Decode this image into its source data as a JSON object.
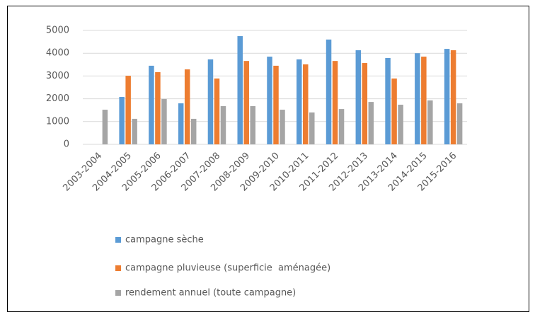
{
  "chart_data": {
    "type": "bar",
    "categories": [
      "2003-2004",
      "2004-2005",
      "2005-2006",
      "2006-2007",
      "2007-2008",
      "2008-2009",
      "2009-2010",
      "2010-2011",
      "2011-2012",
      "2012-2013",
      "2013-2014",
      "2014-2015",
      "2015-2016"
    ],
    "series": [
      {
        "name": "campagne sèche",
        "color": "#5b9bd5",
        "values": [
          null,
          2080,
          3450,
          1800,
          3730,
          4750,
          3850,
          3730,
          4600,
          4130,
          3790,
          4000,
          4190
        ]
      },
      {
        "name": "campagne pluvieuse (superficie  aménagée)",
        "color": "#ed7d31",
        "values": [
          null,
          3010,
          3170,
          3290,
          2890,
          3660,
          3450,
          3510,
          3660,
          3570,
          2890,
          3850,
          4130
        ]
      },
      {
        "name": "rendement annuel (toute campagne)",
        "color": "#a5a5a5",
        "values": [
          1520,
          1120,
          1990,
          1120,
          1680,
          1680,
          1520,
          1400,
          1550,
          1860,
          1740,
          1930,
          1800
        ]
      }
    ],
    "ylim": [
      0,
      5000
    ],
    "yticks": [
      0,
      1000,
      2000,
      3000,
      4000,
      5000
    ],
    "grid": true,
    "legend": "bottom"
  }
}
